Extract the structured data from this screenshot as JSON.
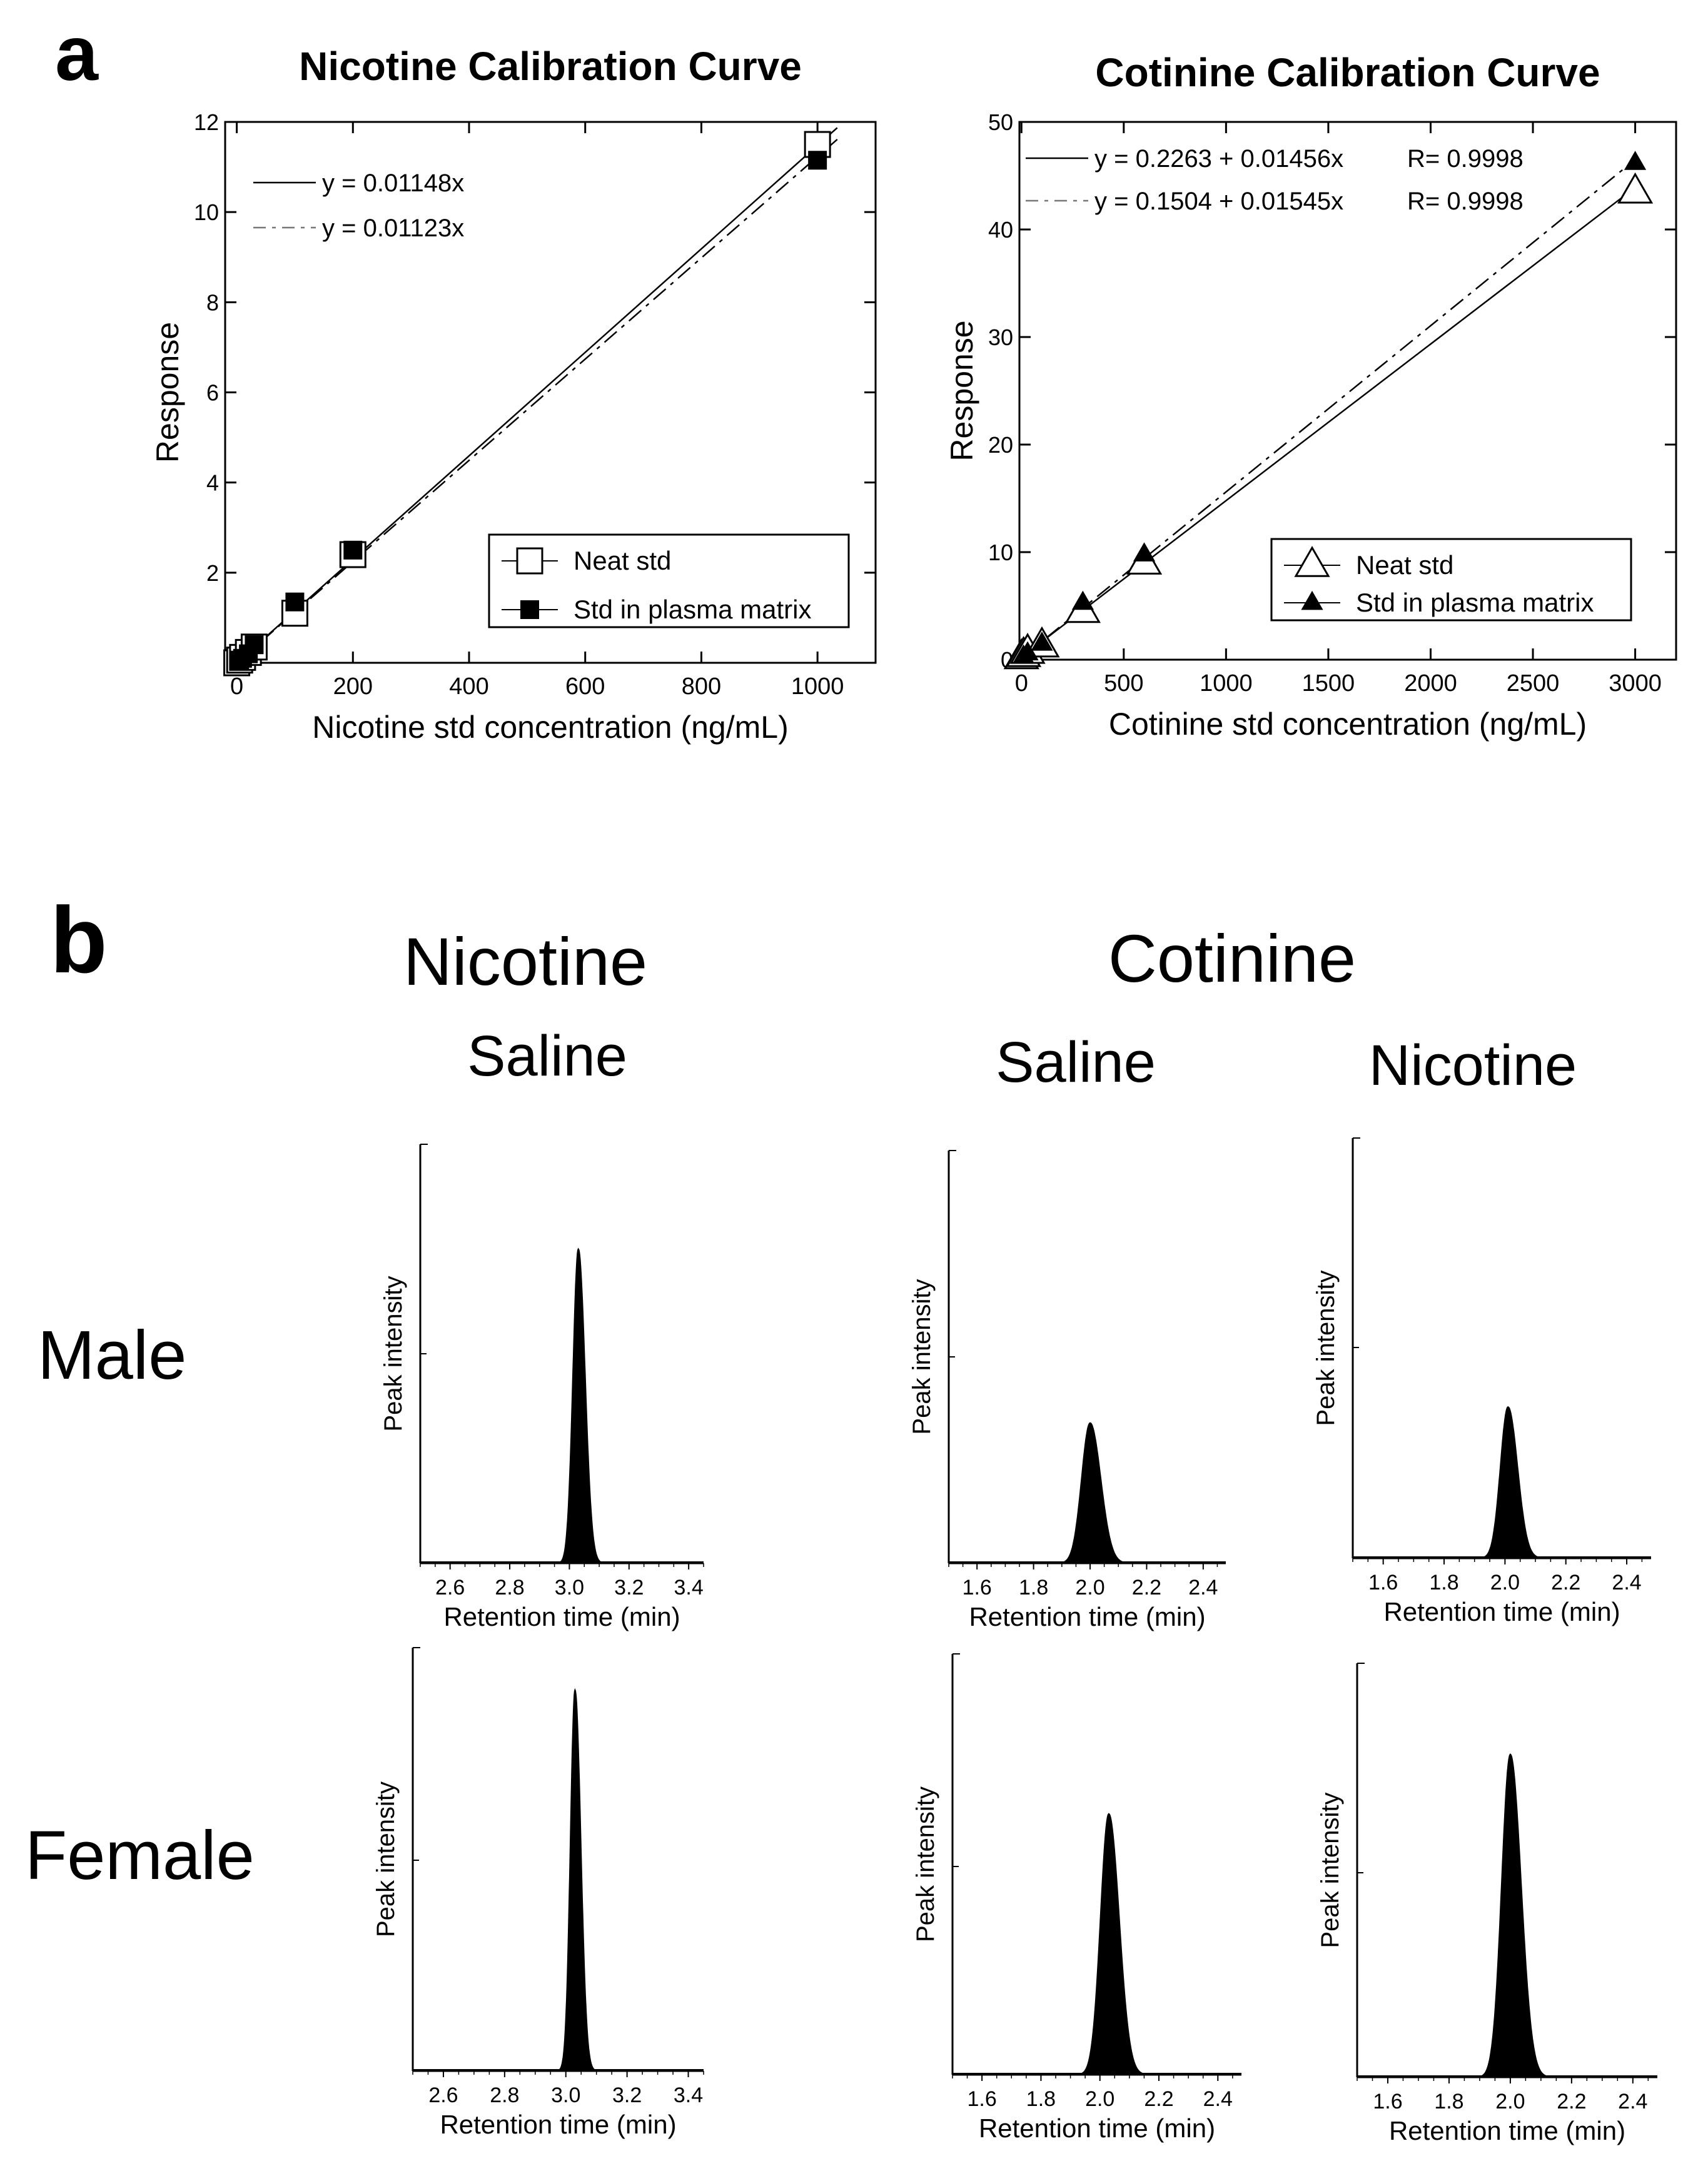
{
  "panel_a": {
    "label": "a"
  },
  "panel_b": {
    "label": "b",
    "group_titles": {
      "nicotine": "Nicotine",
      "cotinine": "Cotinine"
    },
    "column_titles": {
      "nic_saline": "Saline",
      "cot_saline": "Saline",
      "cot_nicotine": "Nicotine"
    },
    "row_titles": {
      "male": "Male",
      "female": "Female"
    }
  },
  "chart_data": [
    {
      "id": "nicotine_calibration",
      "type": "scatter",
      "title": "Nicotine Calibration Curve",
      "xlabel": "Nicotine std concentration (ng/mL)",
      "ylabel": "Response",
      "xlim": [
        -20,
        1100
      ],
      "ylim": [
        0,
        12
      ],
      "xticks": [
        "0",
        "200",
        "400",
        "600",
        "800",
        "1000"
      ],
      "yticks": [
        "2",
        "4",
        "6",
        "8",
        "10",
        "12"
      ],
      "legend_position": "bottom-right",
      "fit_lines": [
        {
          "label": "y = 0.01148x",
          "slope": 0.01148,
          "intercept": 0,
          "style": "solid"
        },
        {
          "label": "y = 0.01123x",
          "slope": 0.01123,
          "intercept": 0,
          "style": "dashed"
        }
      ],
      "series": [
        {
          "name": "Neat std",
          "marker": "open-square",
          "x": [
            0,
            5,
            10,
            20,
            30,
            100,
            200,
            1000
          ],
          "y": [
            0.0,
            0.06,
            0.12,
            0.23,
            0.35,
            1.1,
            2.4,
            11.5
          ]
        },
        {
          "name": "Std in plasma matrix",
          "marker": "filled-square",
          "x": [
            5,
            10,
            20,
            30,
            100,
            200,
            1000
          ],
          "y": [
            0.06,
            0.1,
            0.2,
            0.4,
            1.35,
            2.5,
            11.15
          ]
        }
      ]
    },
    {
      "id": "cotinine_calibration",
      "type": "scatter",
      "title": "Cotinine Calibration Curve",
      "xlabel": "Cotinine std concentration (ng/mL)",
      "ylabel": "Response",
      "xlim": [
        -10,
        3200
      ],
      "ylim": [
        0,
        50
      ],
      "xticks": [
        "0",
        "500",
        "1000",
        "1500",
        "2000",
        "2500",
        "3000"
      ],
      "yticks": [
        "0",
        "10",
        "20",
        "30",
        "40",
        "50"
      ],
      "legend_position": "bottom-right",
      "fit_lines": [
        {
          "label": "y = 0.2263 + 0.01456x",
          "r_label": "R= 0.9998",
          "slope": 0.01456,
          "intercept": 0.2263,
          "style": "solid"
        },
        {
          "label": "y = 0.1504 + 0.01545x",
          "r_label": "R= 0.9998",
          "slope": 0.01545,
          "intercept": 0.1504,
          "style": "dashed"
        }
      ],
      "series": [
        {
          "name": "Neat std",
          "marker": "open-triangle",
          "x": [
            0,
            10,
            30,
            100,
            300,
            600,
            3000
          ],
          "y": [
            0.2,
            0.4,
            0.7,
            1.3,
            4.5,
            9.0,
            43.5
          ]
        },
        {
          "name": "Std in plasma matrix",
          "marker": "filled-triangle",
          "x": [
            10,
            30,
            100,
            300,
            600,
            3000
          ],
          "y": [
            0.3,
            0.6,
            1.5,
            5.3,
            9.8,
            46.2
          ]
        }
      ]
    },
    {
      "id": "male_nicotine_saline",
      "type": "line",
      "xlabel": "Retention time (min)",
      "ylabel": "Peak intensity",
      "xlim": [
        2.5,
        3.45
      ],
      "xticks": [
        "2.6",
        "2.8",
        "3.0",
        "3.2",
        "3.4"
      ],
      "peak_rt": 3.03,
      "peak_height": 0.75,
      "peak_width": 0.018
    },
    {
      "id": "male_cotinine_saline",
      "type": "line",
      "xlabel": "Retention time (min)",
      "ylabel": "Peak intensity",
      "xlim": [
        1.5,
        2.48
      ],
      "xticks": [
        "1.6",
        "1.8",
        "2.0",
        "2.2",
        "2.4"
      ],
      "peak_rt": 2.0,
      "peak_height": 0.34,
      "peak_width": 0.03
    },
    {
      "id": "male_cotinine_nicotine",
      "type": "line",
      "xlabel": "Retention time (min)",
      "ylabel": "Peak intensity",
      "xlim": [
        1.5,
        2.48
      ],
      "xticks": [
        "1.6",
        "1.8",
        "2.0",
        "2.2",
        "2.4"
      ],
      "peak_rt": 2.01,
      "peak_height": 0.36,
      "peak_width": 0.025
    },
    {
      "id": "female_nicotine_saline",
      "type": "line",
      "xlabel": "Retention time (min)",
      "ylabel": "Peak intensity",
      "xlim": [
        2.5,
        3.45
      ],
      "xticks": [
        "2.6",
        "2.8",
        "3.0",
        "3.2",
        "3.4"
      ],
      "peak_rt": 3.03,
      "peak_height": 0.9,
      "peak_width": 0.015
    },
    {
      "id": "female_cotinine_saline",
      "type": "line",
      "xlabel": "Retention time (min)",
      "ylabel": "Peak intensity",
      "xlim": [
        1.5,
        2.48
      ],
      "xticks": [
        "1.6",
        "1.8",
        "2.0",
        "2.2",
        "2.4"
      ],
      "peak_rt": 2.03,
      "peak_height": 0.62,
      "peak_width": 0.028
    },
    {
      "id": "female_cotinine_nicotine",
      "type": "line",
      "xlabel": "Retention time (min)",
      "ylabel": "Peak intensity",
      "xlim": [
        1.5,
        2.48
      ],
      "xticks": [
        "1.6",
        "1.8",
        "2.0",
        "2.2",
        "2.4"
      ],
      "peak_rt": 2.0,
      "peak_height": 0.78,
      "peak_width": 0.028
    }
  ]
}
